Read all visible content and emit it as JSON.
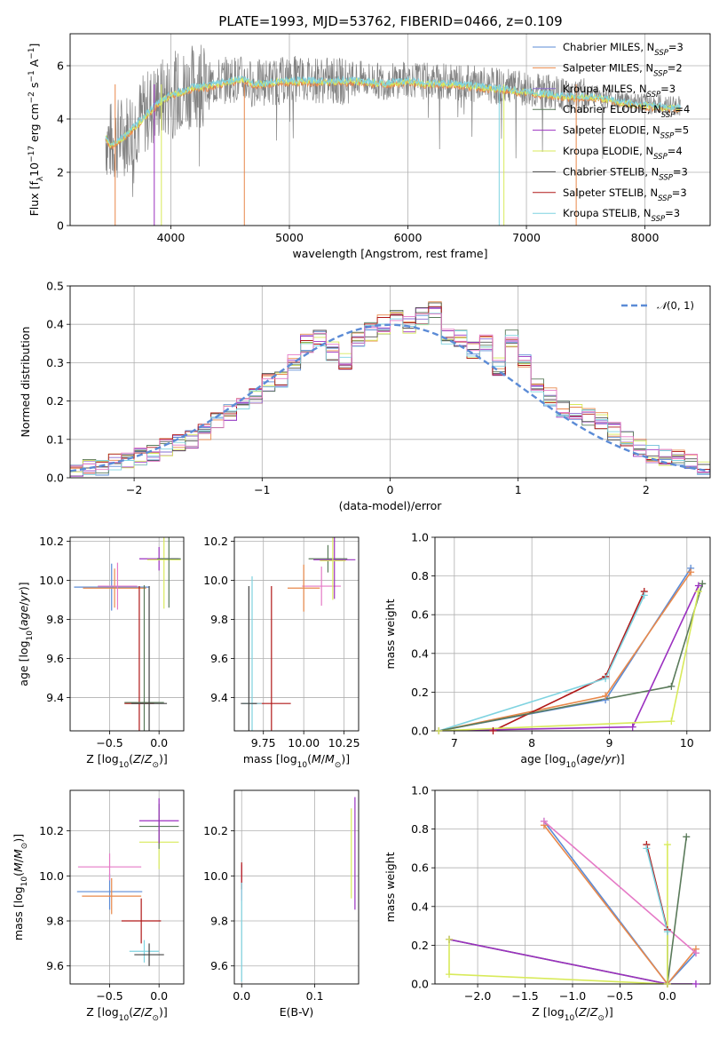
{
  "figure": {
    "title": "PLATE=1993, MJD=53762, FIBERID=0466, z=0.109"
  },
  "series_colors": [
    "#6495ed",
    "#ff6347",
    "#8a2be2",
    "#228b22",
    "#9400d3",
    "#d4e157",
    "#444444",
    "#b22222",
    "#87ceeb"
  ],
  "legend_entries": [
    {
      "label": "Chabrier MILES, N",
      "sub": "SSP",
      "suffix": "=3",
      "color": "#5b8bd6"
    },
    {
      "label": "Salpeter MILES, N",
      "sub": "SSP",
      "suffix": "=2",
      "color": "#e8884a"
    },
    {
      "label": "Kroupa MILES, N",
      "sub": "SSP",
      "suffix": "=3",
      "color": "#8a6ad0"
    },
    {
      "label": "Chabrier ELODIE, N",
      "sub": "SSP",
      "suffix": "=4",
      "color": "#5a7a5a"
    },
    {
      "label": "Salpeter ELODIE, N",
      "sub": "SSP",
      "suffix": "=5",
      "color": "#9b30c0"
    },
    {
      "label": "Kroupa ELODIE, N",
      "sub": "SSP",
      "suffix": "=4",
      "color": "#d8ea5a"
    },
    {
      "label": "Chabrier STELIB, N",
      "sub": "SSP",
      "suffix": "=3",
      "color": "#555555"
    },
    {
      "label": "Salpeter STELIB, N",
      "sub": "SSP",
      "suffix": "=3",
      "color": "#b01818"
    },
    {
      "label": "Kroupa STELIB, N",
      "sub": "SSP",
      "suffix": "=3",
      "color": "#7fd3e0"
    }
  ],
  "chart_data": [
    {
      "id": "spectrum",
      "type": "line",
      "xlabel": "wavelength [Angstrom, rest frame]",
      "ylabel": "Flux [f",
      "ylabel_full": "Flux [fλ10⁻¹⁷ erg cm⁻² s⁻¹ A⁻¹]",
      "xlim": [
        3150,
        8550
      ],
      "ylim": [
        0,
        7.2
      ],
      "xticks": [
        4000,
        5000,
        6000,
        7000,
        8000
      ],
      "yticks": [
        0,
        2,
        4,
        6
      ],
      "series": [
        {
          "name": "data",
          "color": "#808080",
          "x": [
            3450,
            3500,
            3600,
            3700,
            3800,
            3900,
            4000,
            4100,
            4200,
            4300,
            4400,
            4500,
            4600,
            4700,
            4800,
            4900,
            5000,
            5200,
            5400,
            5600,
            5800,
            6000,
            6200,
            6400,
            6600,
            6800,
            7000,
            7200,
            7400,
            7600,
            7800,
            8000,
            8200,
            8300
          ],
          "y": [
            3.3,
            3.1,
            3.4,
            3.8,
            4.3,
            4.7,
            4.9,
            5.1,
            5.3,
            5.2,
            5.4,
            5.5,
            5.5,
            5.3,
            5.4,
            5.4,
            5.5,
            5.5,
            5.4,
            5.5,
            5.4,
            5.5,
            5.4,
            5.4,
            5.3,
            5.2,
            5.1,
            5.0,
            4.8,
            4.9,
            4.7,
            4.6,
            4.5,
            4.5
          ]
        },
        {
          "name": "model",
          "color": "#7fd3e0",
          "x": [
            3450,
            3500,
            3600,
            3700,
            3800,
            3900,
            4000,
            4100,
            4200,
            4300,
            4400,
            4500,
            4600,
            4700,
            4800,
            4900,
            5000,
            5200,
            5400,
            5600,
            5800,
            6000,
            6200,
            6400,
            6600,
            6800,
            7000,
            7200,
            7400,
            7600,
            7800,
            8000,
            8200,
            8300
          ],
          "y": [
            3.3,
            3.0,
            3.3,
            3.7,
            4.2,
            4.6,
            4.9,
            5.0,
            5.2,
            5.2,
            5.3,
            5.4,
            5.5,
            5.3,
            5.3,
            5.4,
            5.4,
            5.4,
            5.4,
            5.4,
            5.3,
            5.4,
            5.3,
            5.3,
            5.2,
            5.1,
            5.0,
            4.9,
            4.8,
            4.8,
            4.6,
            4.5,
            4.4,
            4.4
          ]
        }
      ]
    },
    {
      "id": "residuals",
      "type": "histogram",
      "xlabel": "(data-model)/error",
      "ylabel": "Normed distribution",
      "xlim": [
        -2.5,
        2.5
      ],
      "ylim": [
        0,
        0.5
      ],
      "xticks": [
        -2,
        -1,
        0,
        1,
        2
      ],
      "yticks": [
        0.0,
        0.1,
        0.2,
        0.3,
        0.4,
        0.5
      ],
      "legend": "N(0,1)",
      "bin_edges": [
        -2.5,
        -2.4,
        -2.3,
        -2.2,
        -2.1,
        -2.0,
        -1.9,
        -1.8,
        -1.7,
        -1.6,
        -1.5,
        -1.4,
        -1.3,
        -1.2,
        -1.1,
        -1.0,
        -0.9,
        -0.8,
        -0.7,
        -0.6,
        -0.5,
        -0.4,
        -0.3,
        -0.2,
        -0.1,
        0.0,
        0.1,
        0.2,
        0.3,
        0.4,
        0.5,
        0.6,
        0.7,
        0.8,
        0.9,
        1.0,
        1.1,
        1.2,
        1.3,
        1.4,
        1.5,
        1.6,
        1.7,
        1.8,
        1.9,
        2.0,
        2.1,
        2.2,
        2.3,
        2.4,
        2.5
      ],
      "hist": [
        0.02,
        0.025,
        0.03,
        0.04,
        0.05,
        0.055,
        0.06,
        0.08,
        0.09,
        0.1,
        0.12,
        0.15,
        0.17,
        0.19,
        0.21,
        0.25,
        0.26,
        0.3,
        0.35,
        0.36,
        0.33,
        0.3,
        0.36,
        0.38,
        0.4,
        0.42,
        0.4,
        0.42,
        0.44,
        0.37,
        0.36,
        0.33,
        0.35,
        0.29,
        0.36,
        0.3,
        0.24,
        0.21,
        0.18,
        0.17,
        0.16,
        0.15,
        0.12,
        0.1,
        0.08,
        0.06,
        0.05,
        0.05,
        0.04,
        0.03
      ]
    },
    {
      "id": "age_vs_Z",
      "type": "errorbar",
      "xlabel": "Z [log10(Z/Z☉)]",
      "ylabel": "age  [log10(age/yr)]",
      "xlim": [
        -0.9,
        0.25
      ],
      "ylim": [
        9.23,
        10.22
      ],
      "xticks": [
        -0.5,
        0.0
      ],
      "yticks": [
        9.4,
        9.6,
        9.8,
        10.0,
        10.2
      ],
      "points": [
        {
          "x": -0.48,
          "y": 9.965,
          "xerr": 0.38,
          "yerr": 0.12,
          "color": "#5b8bd6"
        },
        {
          "x": -0.45,
          "y": 9.96,
          "xerr": 0.32,
          "yerr": 0.1,
          "color": "#e8884a"
        },
        {
          "x": -0.42,
          "y": 9.97,
          "xerr": 0.2,
          "yerr": 0.12,
          "color": "#e57ac6"
        },
        {
          "x": 0.0,
          "y": 10.11,
          "xerr": 0.2,
          "yerr": 0.06,
          "color": "#9b30c0"
        },
        {
          "x": 0.05,
          "y": 10.105,
          "xerr": 0.17,
          "yerr": 0.25,
          "color": "#d8ea5a"
        },
        {
          "x": 0.1,
          "y": 10.11,
          "xerr": 0.12,
          "yerr": 0.25,
          "color": "#5a7a5a"
        },
        {
          "x": -0.2,
          "y": 9.37,
          "xerr": 0.15,
          "yerr": 0.6,
          "color": "#b01818"
        },
        {
          "x": -0.15,
          "y": 9.375,
          "xerr": 0.2,
          "yerr": 0.6,
          "color": "#5a7a5a"
        },
        {
          "x": -0.1,
          "y": 9.37,
          "xerr": 0.18,
          "yerr": 0.6,
          "color": "#444444"
        }
      ]
    },
    {
      "id": "age_vs_mass",
      "type": "errorbar",
      "xlabel": "mass [log10(M/M☉)]",
      "ylabel": "",
      "xlim": [
        9.57,
        10.34
      ],
      "ylim": [
        9.23,
        10.22
      ],
      "xticks": [
        9.75,
        10.0,
        10.25
      ],
      "xticklabels": [
        "9.75",
        "10.00",
        "10.25"
      ],
      "yticks": [
        9.4,
        9.6,
        9.8,
        10.0,
        10.2
      ],
      "points": [
        {
          "x": 10.11,
          "y": 9.97,
          "xerr": 0.12,
          "yerr": 0.1,
          "color": "#e57ac6"
        },
        {
          "x": 10.0,
          "y": 9.96,
          "xerr": 0.1,
          "yerr": 0.12,
          "color": "#e8884a"
        },
        {
          "x": 10.15,
          "y": 10.11,
          "xerr": 0.12,
          "yerr": 0.07,
          "color": "#5a7a5a"
        },
        {
          "x": 10.19,
          "y": 10.105,
          "xerr": 0.13,
          "yerr": 0.2,
          "color": "#9b30c0"
        },
        {
          "x": 10.18,
          "y": 10.1,
          "xerr": 0.08,
          "yerr": 0.2,
          "color": "#d8ea5a"
        },
        {
          "x": 9.8,
          "y": 9.37,
          "xerr": 0.12,
          "yerr": 0.6,
          "color": "#b01818"
        },
        {
          "x": 9.68,
          "y": 9.37,
          "xerr": 0.06,
          "yerr": 0.65,
          "color": "#7fd3e0"
        },
        {
          "x": 9.66,
          "y": 9.37,
          "xerr": 0.05,
          "yerr": 0.6,
          "color": "#444444"
        }
      ]
    },
    {
      "id": "weight_vs_age",
      "type": "line",
      "xlabel": "age  [log10(age/yr)]",
      "ylabel": "mass weight",
      "xlim": [
        6.75,
        10.3
      ],
      "ylim": [
        0,
        1
      ],
      "xticks": [
        7,
        8,
        9,
        10
      ],
      "yticks": [
        0.0,
        0.2,
        0.4,
        0.6,
        0.8,
        1.0
      ],
      "series": [
        {
          "color": "#5b8bd6",
          "x": [
            6.8,
            8.95,
            10.05
          ],
          "y": [
            0.0,
            0.16,
            0.84
          ]
        },
        {
          "color": "#e8884a",
          "x": [
            6.8,
            8.95,
            10.05
          ],
          "y": [
            0.0,
            0.18,
            0.82
          ]
        },
        {
          "color": "#b01818",
          "x": [
            7.5,
            8.95,
            9.45
          ],
          "y": [
            0.0,
            0.28,
            0.72
          ]
        },
        {
          "color": "#7fd3e0",
          "x": [
            6.8,
            8.95,
            9.45
          ],
          "y": [
            0.0,
            0.27,
            0.7
          ]
        },
        {
          "color": "#5a7a5a",
          "x": [
            6.8,
            9.8,
            10.2
          ],
          "y": [
            0.0,
            0.23,
            0.76
          ]
        },
        {
          "color": "#9b30c0",
          "x": [
            6.8,
            9.3,
            10.15
          ],
          "y": [
            0.0,
            0.02,
            0.75
          ]
        },
        {
          "color": "#d8ea5a",
          "x": [
            6.8,
            9.8,
            10.15
          ],
          "y": [
            0.0,
            0.05,
            0.72
          ]
        }
      ]
    },
    {
      "id": "mass_vs_Z",
      "type": "errorbar",
      "xlabel": "Z [log10(Z/Z☉)]",
      "ylabel": "mass [log10(M/M☉)]",
      "xlim": [
        -0.9,
        0.25
      ],
      "ylim": [
        9.52,
        10.38
      ],
      "xticks": [
        -0.5,
        0.0
      ],
      "yticks": [
        9.6,
        9.8,
        10.0,
        10.2
      ],
      "points": [
        {
          "x": -0.5,
          "y": 9.93,
          "xerr": 0.33,
          "yerr": 0.08,
          "color": "#5b8bd6"
        },
        {
          "x": -0.48,
          "y": 9.91,
          "xerr": 0.3,
          "yerr": 0.08,
          "color": "#e8884a"
        },
        {
          "x": -0.5,
          "y": 10.04,
          "xerr": 0.32,
          "yerr": 0.06,
          "color": "#e57ac6"
        },
        {
          "x": 0.0,
          "y": 10.15,
          "xerr": 0.2,
          "yerr": 0.12,
          "color": "#d8ea5a"
        },
        {
          "x": 0.0,
          "y": 10.22,
          "xerr": 0.2,
          "yerr": 0.1,
          "color": "#5a7a5a"
        },
        {
          "x": 0.0,
          "y": 10.245,
          "xerr": 0.2,
          "yerr": 0.1,
          "color": "#9b30c0"
        },
        {
          "x": -0.18,
          "y": 9.8,
          "xerr": 0.2,
          "yerr": 0.1,
          "color": "#b01818"
        },
        {
          "x": -0.15,
          "y": 9.665,
          "xerr": 0.15,
          "yerr": 0.05,
          "color": "#7fd3e0"
        },
        {
          "x": -0.1,
          "y": 9.65,
          "xerr": 0.15,
          "yerr": 0.05,
          "color": "#444444"
        }
      ]
    },
    {
      "id": "mass_vs_EBV",
      "type": "errorbar",
      "xlabel": "E(B-V)",
      "ylabel": "",
      "xlim": [
        -0.01,
        0.16
      ],
      "ylim": [
        9.52,
        10.38
      ],
      "xticks": [
        0.0,
        0.1
      ],
      "yticks": [
        9.6,
        9.8,
        10.0,
        10.2
      ],
      "points": [
        {
          "x": 0.0,
          "y": 9.97,
          "xerr": 0.0,
          "yerr": 0.08,
          "color": "#e57ac6"
        },
        {
          "x": 0.0,
          "y": 10.0,
          "xerr": 0.0,
          "yerr": 0.06,
          "color": "#b01818"
        },
        {
          "x": 0.0,
          "y": 9.75,
          "xerr": 0.0,
          "yerr": 0.22,
          "color": "#7fd3e0"
        },
        {
          "x": 0.15,
          "y": 10.1,
          "xerr": 0.0,
          "yerr": 0.2,
          "color": "#d8ea5a"
        },
        {
          "x": 0.155,
          "y": 10.1,
          "xerr": 0.0,
          "yerr": 0.25,
          "color": "#9b30c0"
        }
      ]
    },
    {
      "id": "weight_vs_Z",
      "type": "line",
      "xlabel": "Z [log10(Z/Z☉)]",
      "ylabel": "mass weight",
      "xlim": [
        -2.45,
        0.45
      ],
      "ylim": [
        0,
        1
      ],
      "xticks": [
        -2.0,
        -1.5,
        -1.0,
        -0.5,
        0.0
      ],
      "yticks": [
        0.0,
        0.2,
        0.4,
        0.6,
        0.8,
        1.0
      ],
      "series": [
        {
          "color": "#5b8bd6",
          "x": [
            -1.3,
            0.0,
            0.3
          ],
          "y": [
            0.84,
            0.0,
            0.16
          ]
        },
        {
          "color": "#e8884a",
          "x": [
            -1.3,
            0.0,
            0.3
          ],
          "y": [
            0.82,
            0.0,
            0.18
          ]
        },
        {
          "color": "#e57ac6",
          "x": [
            -1.3,
            0.3
          ],
          "y": [
            0.84,
            0.16
          ]
        },
        {
          "color": "#b01818",
          "x": [
            -0.22,
            0.0,
            0.0
          ],
          "y": [
            0.72,
            0.28,
            0.0
          ]
        },
        {
          "color": "#7fd3e0",
          "x": [
            -0.22,
            0.0,
            0.0
          ],
          "y": [
            0.7,
            0.27,
            0.0
          ]
        },
        {
          "color": "#5a7a5a",
          "x": [
            -2.3,
            0.0,
            0.2
          ],
          "y": [
            0.23,
            0.0,
            0.76
          ]
        },
        {
          "color": "#9b30c0",
          "x": [
            -2.3,
            0.0,
            0.3
          ],
          "y": [
            0.23,
            0.0,
            0.0
          ]
        },
        {
          "color": "#d8ea5a",
          "x": [
            -2.3,
            -2.3,
            0.0,
            0.0
          ],
          "y": [
            0.23,
            0.05,
            0.0,
            0.72
          ]
        }
      ]
    }
  ]
}
